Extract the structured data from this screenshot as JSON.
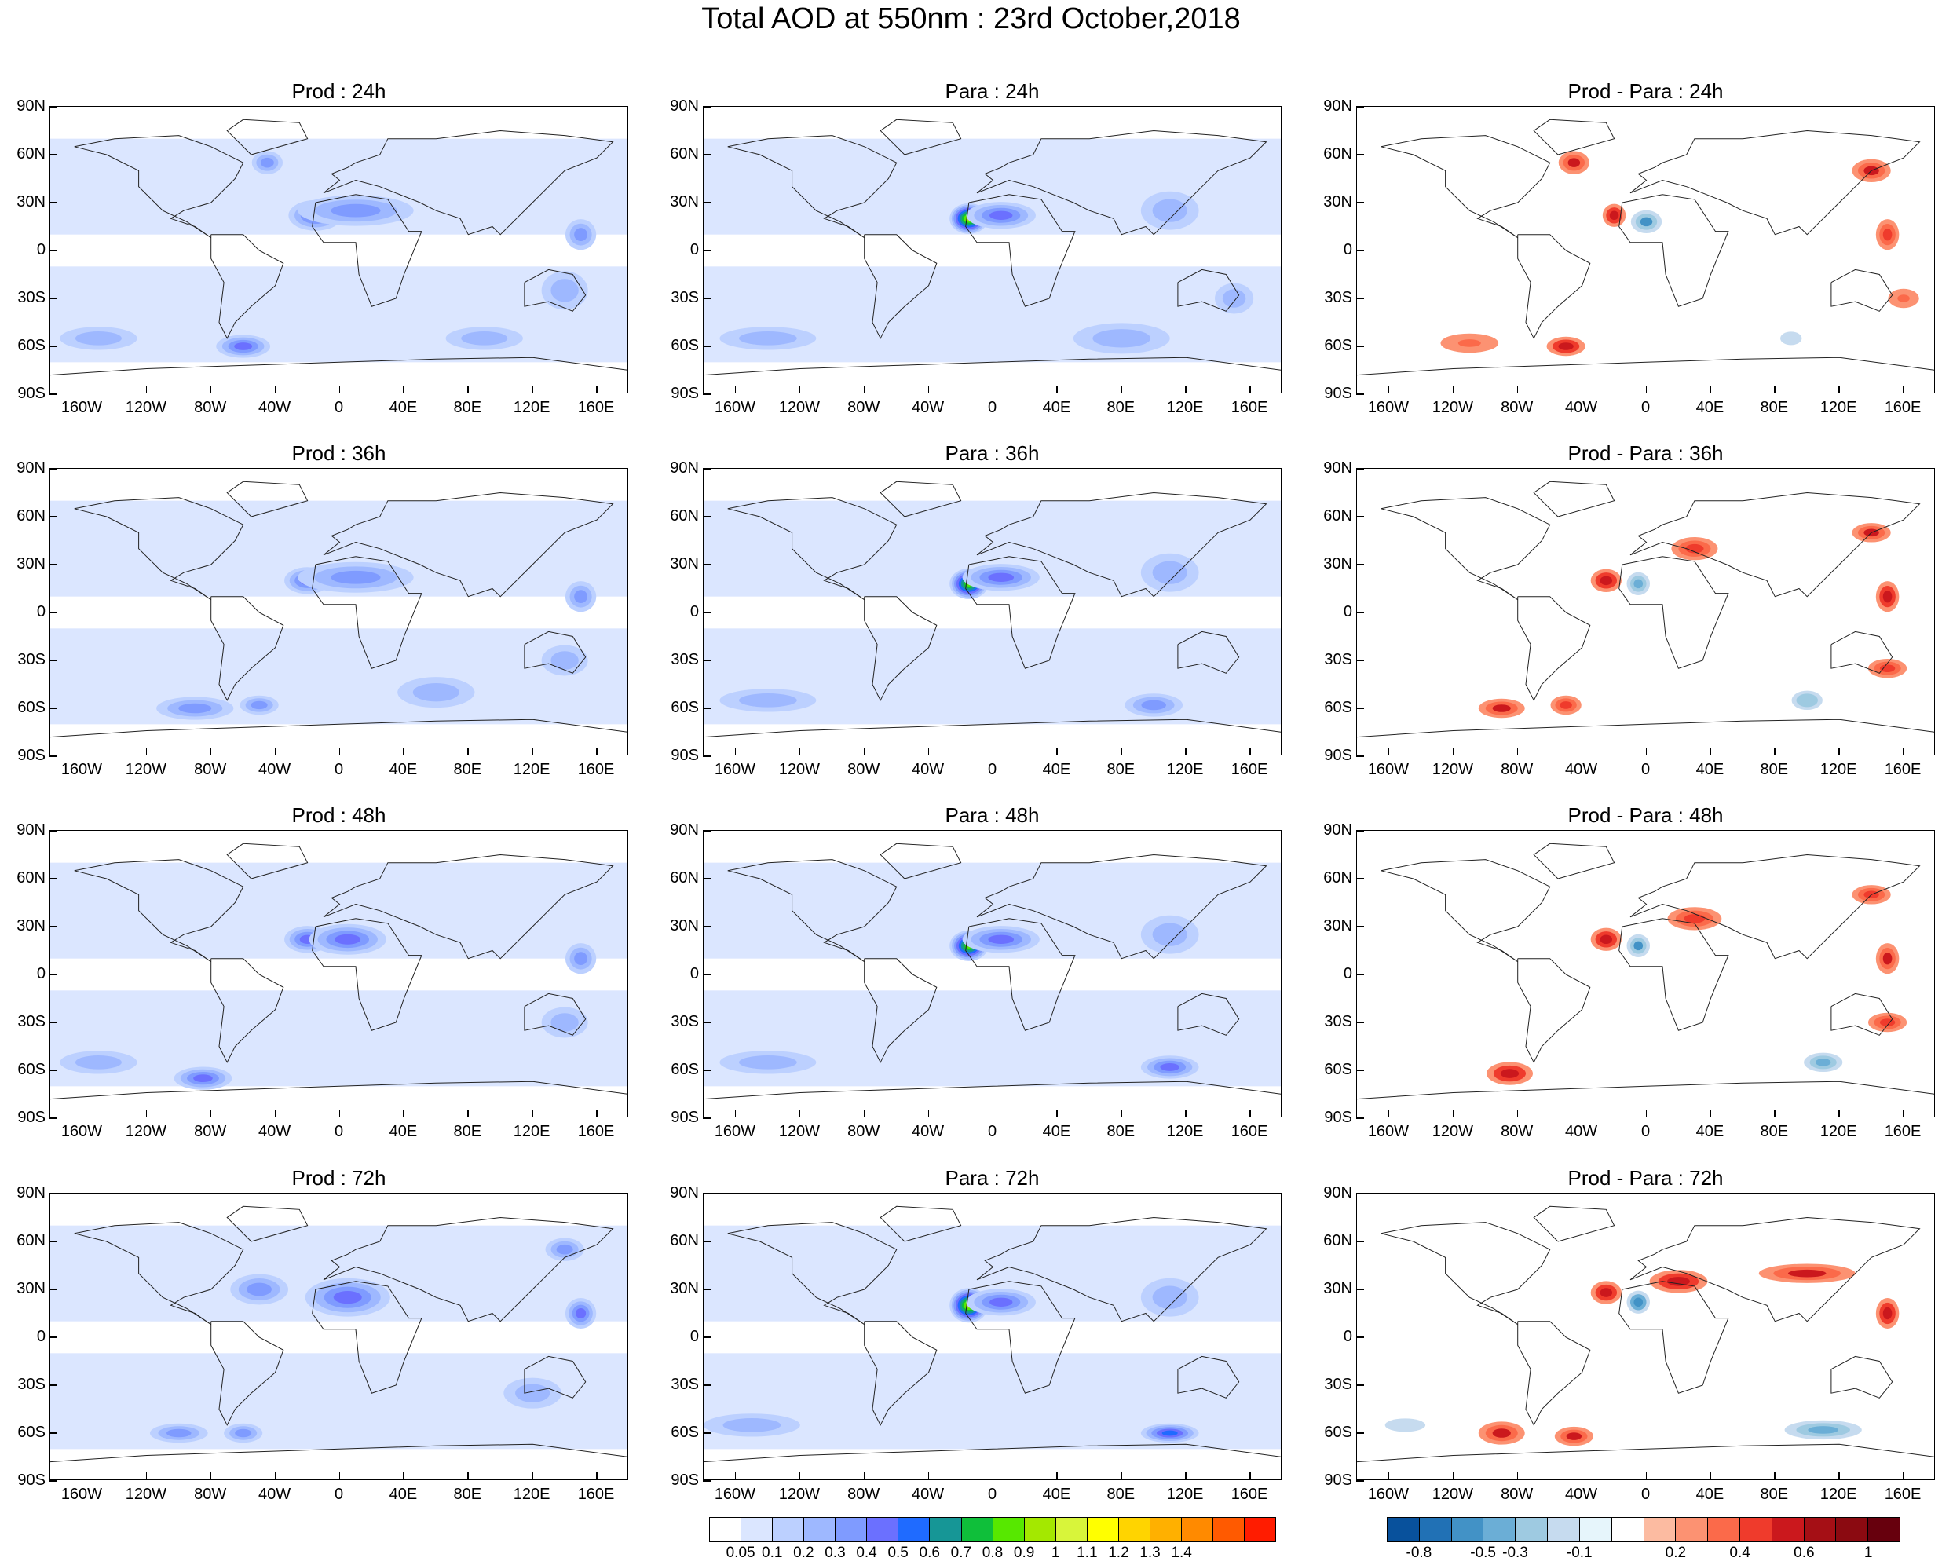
{
  "title": "Total AOD at 550nm : 23rd October,2018",
  "lat_labels": [
    "90N",
    "60N",
    "30N",
    "0",
    "30S",
    "60S",
    "90S"
  ],
  "lon_labels": [
    "160W",
    "120W",
    "80W",
    "40W",
    "0",
    "40E",
    "80E",
    "120E",
    "160E"
  ],
  "panels": [
    {
      "title": "Prod : 24h",
      "kind": "aod",
      "col": 0,
      "row": 0,
      "blobs": [
        [
          -15,
          22,
          14,
          8,
          4
        ],
        [
          10,
          25,
          30,
          8,
          3
        ],
        [
          -45,
          55,
          8,
          6,
          3
        ],
        [
          -60,
          -60,
          14,
          6,
          4
        ],
        [
          150,
          10,
          8,
          8,
          3
        ],
        [
          140,
          -25,
          12,
          10,
          2
        ],
        [
          -150,
          -55,
          20,
          6,
          2
        ],
        [
          90,
          -55,
          20,
          6,
          2
        ]
      ]
    },
    {
      "title": "Para : 24h",
      "kind": "aod",
      "col": 1,
      "row": 0,
      "blobs": [
        [
          -15,
          20,
          10,
          8,
          9
        ],
        [
          5,
          22,
          18,
          7,
          4
        ],
        [
          110,
          25,
          15,
          10,
          2
        ],
        [
          -140,
          -55,
          25,
          6,
          2
        ],
        [
          80,
          -55,
          25,
          8,
          2
        ],
        [
          150,
          -30,
          10,
          8,
          2
        ]
      ]
    },
    {
      "title": "Prod - Para : 24h",
      "kind": "diff",
      "col": 2,
      "row": 0,
      "blobs": [
        [
          -45,
          55,
          8,
          6,
          0.5
        ],
        [
          -20,
          22,
          6,
          6,
          0.6
        ],
        [
          0,
          18,
          8,
          6,
          -0.6
        ],
        [
          140,
          50,
          10,
          6,
          0.5
        ],
        [
          150,
          10,
          6,
          8,
          0.4
        ],
        [
          -50,
          -60,
          10,
          5,
          0.6
        ],
        [
          -110,
          -58,
          15,
          5,
          0.3
        ],
        [
          160,
          -30,
          8,
          5,
          0.3
        ],
        [
          90,
          -55,
          8,
          5,
          -0.2
        ]
      ]
    },
    {
      "title": "Prod : 36h",
      "kind": "aod",
      "col": 0,
      "row": 1,
      "blobs": [
        [
          -20,
          20,
          12,
          7,
          4
        ],
        [
          10,
          22,
          30,
          8,
          3
        ],
        [
          -90,
          -60,
          20,
          6,
          3
        ],
        [
          -50,
          -58,
          10,
          5,
          3
        ],
        [
          150,
          10,
          8,
          8,
          3
        ],
        [
          140,
          -30,
          12,
          8,
          2
        ],
        [
          60,
          -50,
          20,
          8,
          2
        ]
      ]
    },
    {
      "title": "Para : 36h",
      "kind": "aod",
      "col": 1,
      "row": 1,
      "blobs": [
        [
          -15,
          18,
          10,
          8,
          8
        ],
        [
          5,
          22,
          20,
          7,
          4
        ],
        [
          100,
          -58,
          15,
          6,
          3
        ],
        [
          -140,
          -55,
          25,
          6,
          2
        ],
        [
          110,
          25,
          15,
          10,
          2
        ]
      ]
    },
    {
      "title": "Prod - Para : 36h",
      "kind": "diff",
      "col": 2,
      "row": 1,
      "blobs": [
        [
          -25,
          20,
          8,
          6,
          0.6
        ],
        [
          -5,
          18,
          6,
          6,
          -0.5
        ],
        [
          30,
          40,
          12,
          6,
          0.4
        ],
        [
          140,
          50,
          10,
          5,
          0.5
        ],
        [
          150,
          10,
          6,
          8,
          0.6
        ],
        [
          -90,
          -60,
          12,
          5,
          0.5
        ],
        [
          -50,
          -58,
          8,
          5,
          0.4
        ],
        [
          100,
          -55,
          8,
          5,
          -0.4
        ],
        [
          150,
          -35,
          10,
          5,
          0.4
        ]
      ]
    },
    {
      "title": "Prod : 48h",
      "kind": "aod",
      "col": 0,
      "row": 2,
      "blobs": [
        [
          -20,
          22,
          12,
          7,
          4
        ],
        [
          5,
          22,
          20,
          8,
          4
        ],
        [
          -85,
          -65,
          15,
          6,
          4
        ],
        [
          -150,
          -55,
          20,
          6,
          2
        ],
        [
          150,
          10,
          8,
          8,
          3
        ],
        [
          140,
          -30,
          12,
          8,
          2
        ]
      ]
    },
    {
      "title": "Para : 48h",
      "kind": "aod",
      "col": 1,
      "row": 2,
      "blobs": [
        [
          -15,
          18,
          10,
          8,
          8
        ],
        [
          5,
          22,
          20,
          7,
          4
        ],
        [
          110,
          -58,
          15,
          6,
          4
        ],
        [
          -140,
          -55,
          25,
          6,
          2
        ],
        [
          110,
          25,
          15,
          10,
          2
        ]
      ]
    },
    {
      "title": "Prod - Para : 48h",
      "kind": "diff",
      "col": 2,
      "row": 2,
      "blobs": [
        [
          -25,
          22,
          8,
          6,
          0.6
        ],
        [
          -5,
          18,
          6,
          6,
          -0.6
        ],
        [
          30,
          35,
          14,
          6,
          0.4
        ],
        [
          140,
          50,
          10,
          5,
          0.4
        ],
        [
          150,
          10,
          6,
          8,
          0.5
        ],
        [
          -85,
          -62,
          12,
          6,
          0.6
        ],
        [
          110,
          -55,
          10,
          5,
          -0.5
        ],
        [
          150,
          -30,
          10,
          5,
          0.4
        ]
      ]
    },
    {
      "title": "Prod : 72h",
      "kind": "aod",
      "col": 0,
      "row": 3,
      "blobs": [
        [
          5,
          25,
          22,
          10,
          4
        ],
        [
          -50,
          30,
          15,
          8,
          3
        ],
        [
          140,
          55,
          10,
          6,
          3
        ],
        [
          150,
          15,
          8,
          8,
          4
        ],
        [
          -100,
          -60,
          15,
          5,
          3
        ],
        [
          -60,
          -60,
          10,
          5,
          3
        ],
        [
          120,
          -35,
          15,
          8,
          2
        ]
      ]
    },
    {
      "title": "Para : 72h",
      "kind": "aod",
      "col": 1,
      "row": 3,
      "blobs": [
        [
          -15,
          20,
          10,
          9,
          9
        ],
        [
          5,
          22,
          18,
          7,
          4
        ],
        [
          110,
          -60,
          15,
          5,
          5
        ],
        [
          -150,
          -55,
          25,
          6,
          2
        ],
        [
          110,
          25,
          15,
          10,
          2
        ]
      ]
    },
    {
      "title": "Prod - Para : 72h",
      "kind": "diff",
      "col": 2,
      "row": 3,
      "blobs": [
        [
          -25,
          28,
          8,
          6,
          0.6
        ],
        [
          -5,
          22,
          6,
          6,
          -0.7
        ],
        [
          20,
          35,
          15,
          6,
          0.6
        ],
        [
          100,
          40,
          25,
          5,
          0.5
        ],
        [
          150,
          15,
          6,
          8,
          0.6
        ],
        [
          -90,
          -60,
          12,
          6,
          0.5
        ],
        [
          -45,
          -62,
          10,
          5,
          0.5
        ],
        [
          110,
          -58,
          20,
          5,
          -0.5
        ],
        [
          -150,
          -55,
          15,
          5,
          -0.2
        ]
      ]
    }
  ],
  "colorbar_aod": {
    "colors": [
      "#ffffff",
      "#dbe6ff",
      "#bcd0ff",
      "#9eb8ff",
      "#7f9bff",
      "#6b70ff",
      "#1f6bff",
      "#169696",
      "#0fbf3a",
      "#57e800",
      "#a4e800",
      "#d8f53a",
      "#ffff00",
      "#ffd400",
      "#ffb000",
      "#ff8a00",
      "#ff5a00",
      "#ff1c00"
    ],
    "labels": [
      "0.05",
      "0.1",
      "0.2",
      "0.3",
      "0.4",
      "0.5",
      "0.6",
      "0.7",
      "0.8",
      "0.9",
      "1",
      "1.1",
      "1.2",
      "1.3",
      "1.4"
    ]
  },
  "colorbar_diff": {
    "colors": [
      "#08519c",
      "#2171b5",
      "#4292c6",
      "#6baed6",
      "#9ecae1",
      "#c6dbef",
      "#e6f5fb",
      "#ffffff",
      "#fcbba1",
      "#fc9272",
      "#fb6a4a",
      "#ef3b2c",
      "#cb181d",
      "#a50f15",
      "#8b0a11",
      "#67000d"
    ],
    "labels": [
      "-0.8",
      "-0.5",
      "-0.3",
      "-0.1",
      "0.2",
      "0.4",
      "0.6",
      "1"
    ]
  }
}
